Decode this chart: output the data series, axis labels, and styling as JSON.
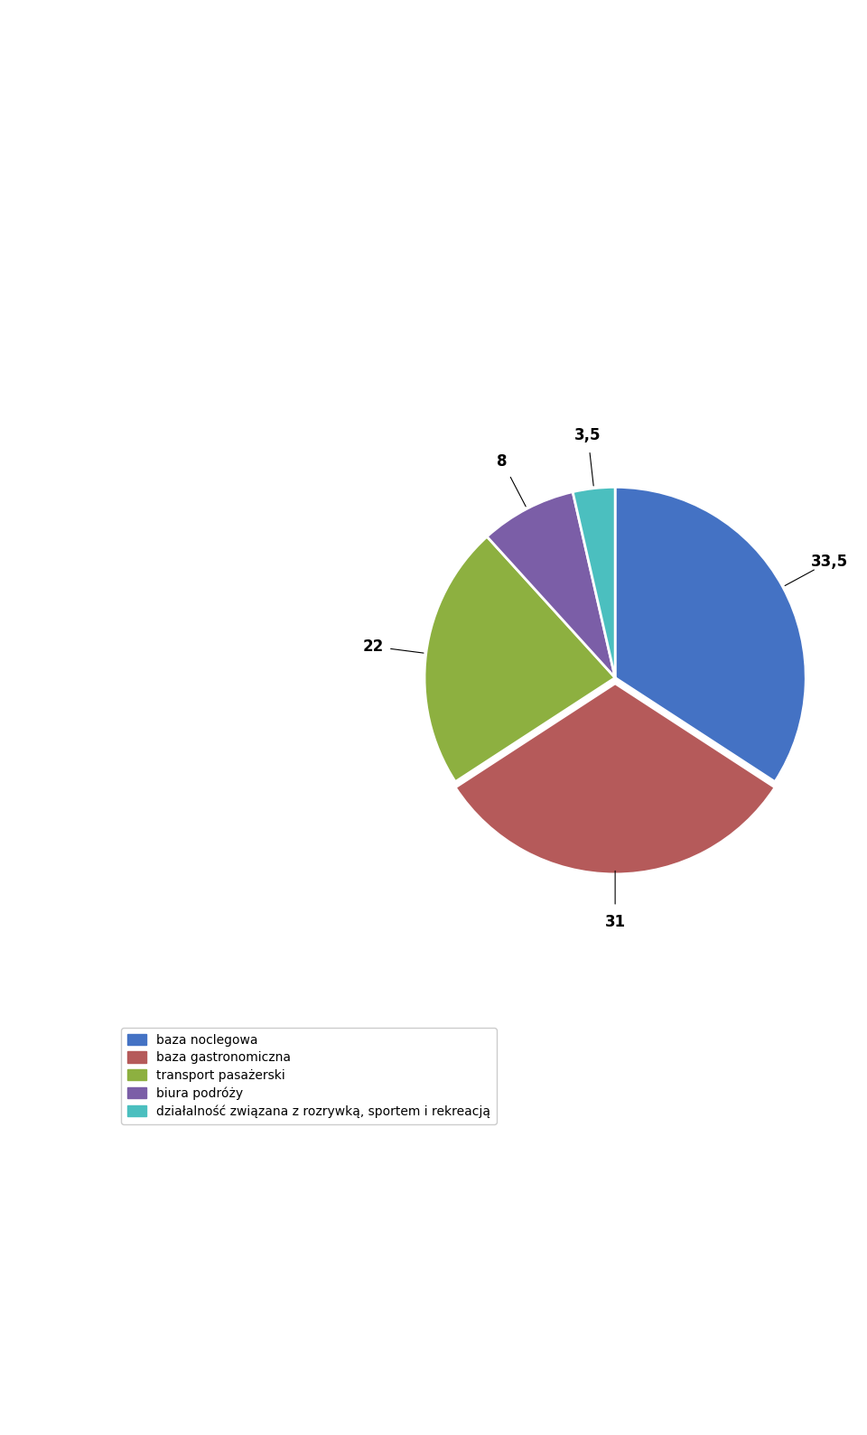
{
  "slices": [
    33.5,
    31.0,
    22.0,
    8.0,
    3.5
  ],
  "colors": [
    "#4472C4",
    "#B55A5A",
    "#8DB040",
    "#7B5EA7",
    "#4BBFBF"
  ],
  "labels": [
    "33,5",
    "31",
    "22",
    "8",
    "3,5"
  ],
  "legend_labels": [
    "baza noclegowa",
    "baza gastronomiczna",
    "transport pasażerski",
    "biura podróży",
    "działalność związana z rozrywką, sportem i rekreacją"
  ],
  "legend_colors": [
    "#4472C4",
    "#B55A5A",
    "#8DB040",
    "#7B5EA7",
    "#4BBFBF"
  ],
  "explode": [
    0.0,
    0.03,
    0.0,
    0.0,
    0.0
  ],
  "startangle": 90,
  "background_color": "#FFFFFF",
  "label_fontsize": 12,
  "legend_fontsize": 10
}
